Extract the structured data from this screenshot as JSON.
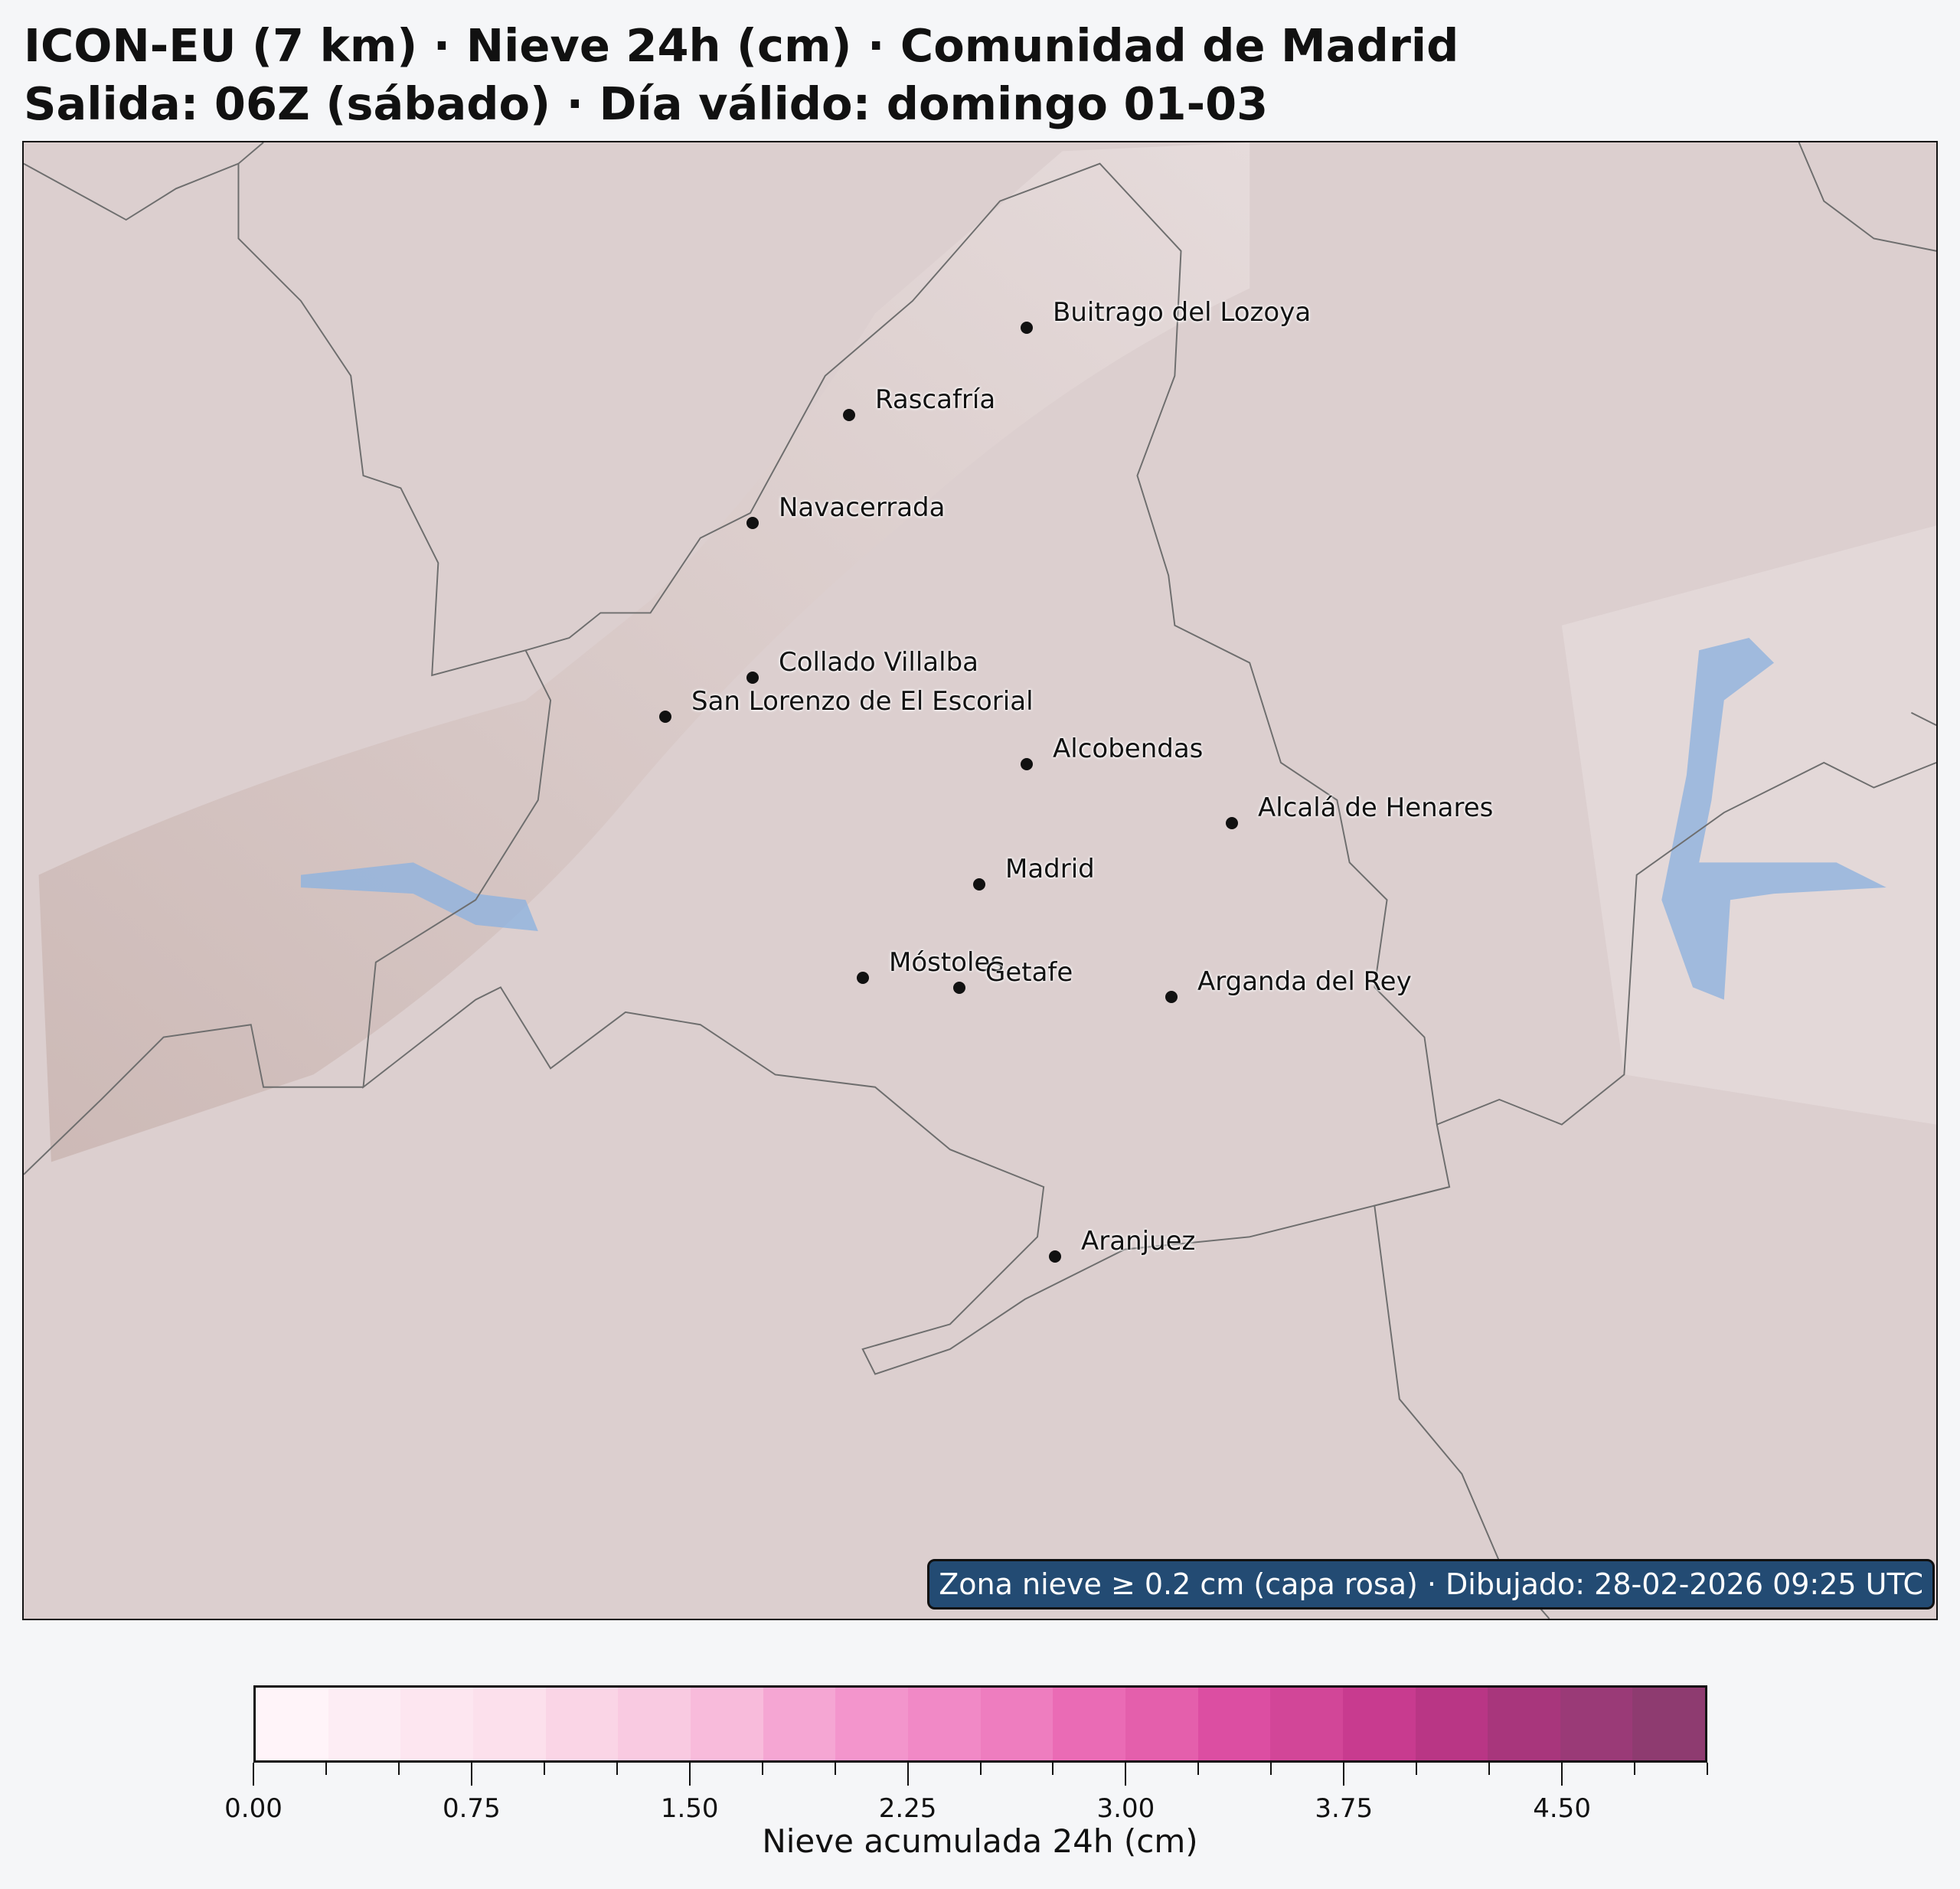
{
  "title": {
    "line1": "ICON-EU (7 km) · Nieve 24h (cm) · Comunidad de Madrid",
    "line2": "Salida: 06Z (sábado) · Día válido: domingo 01-03"
  },
  "map": {
    "background_color": "#dccfcf",
    "border_color": "#6e6e6e",
    "water_color": "#8fb3de",
    "cities": [
      {
        "name": "Buitrago del Lozoya"
      },
      {
        "name": "Rascafría"
      },
      {
        "name": "Navacerrada"
      },
      {
        "name": "Collado Villalba"
      },
      {
        "name": "San Lorenzo de El Escorial"
      },
      {
        "name": "Alcobendas"
      },
      {
        "name": "Alcalá de Henares"
      },
      {
        "name": "Madrid"
      },
      {
        "name": "Móstoles"
      },
      {
        "name": "Getafe"
      },
      {
        "name": "Arganda del Rey"
      },
      {
        "name": "Aranjuez"
      }
    ],
    "badge": "Zona nieve ≥ 0.2 cm (capa rosa) · Dibujado: 28-02-2026 09:25 UTC",
    "badge_color": "#234b73"
  },
  "colorbar": {
    "label": "Nieve acumulada 24h (cm)",
    "range": [
      0,
      5
    ],
    "step": 0.25,
    "tick_labels": [
      "0.00",
      "0.75",
      "1.50",
      "2.25",
      "3.00",
      "3.75",
      "4.50"
    ],
    "colors": [
      "#fff4f9",
      "#fdedf4",
      "#fde6f0",
      "#fce0ec",
      "#fad5e6",
      "#f9cae1",
      "#f8bbdb",
      "#f5a6d3",
      "#f395cc",
      "#f189c6",
      "#ee7dbf",
      "#ea6bb5",
      "#e45fac",
      "#dc4ea2",
      "#d24698",
      "#c83b8f",
      "#b93685",
      "#a8367c",
      "#9a3a77",
      "#8e3b70"
    ]
  }
}
